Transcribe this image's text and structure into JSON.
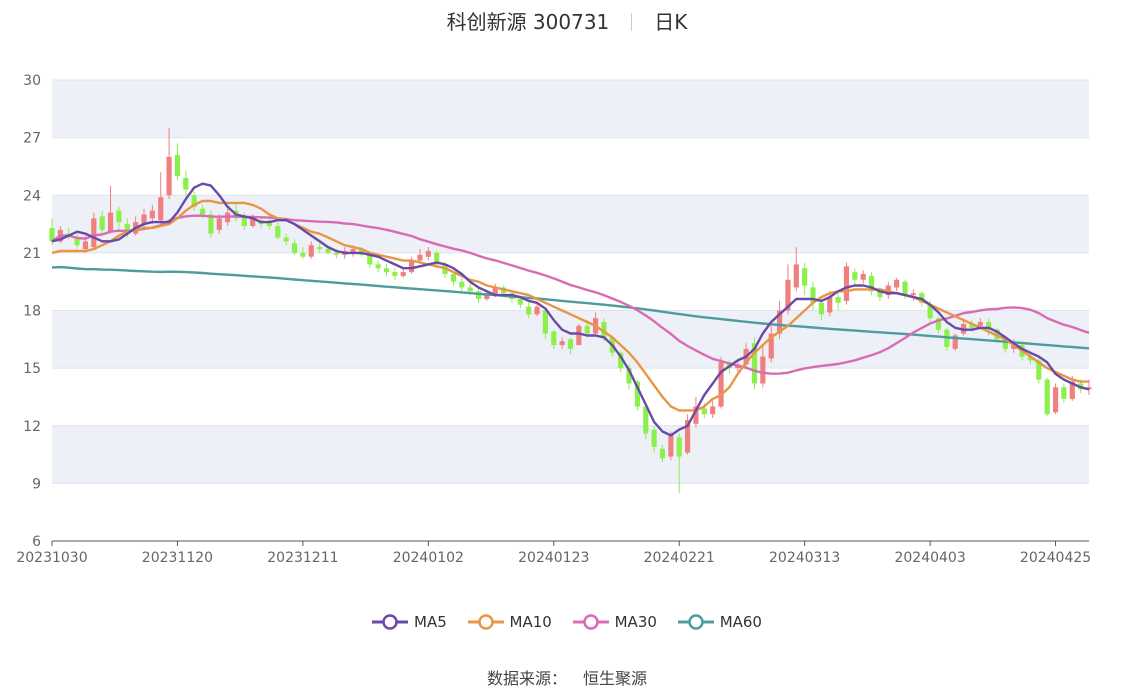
{
  "header": {
    "stock_name": "科创新源 300731",
    "period": "日K"
  },
  "source": {
    "label": "数据来源：",
    "value": "恒生聚源"
  },
  "colors": {
    "up": "#f08080",
    "down": "#8cf04c",
    "ma5": "#6a4aa8",
    "ma10": "#e89546",
    "ma30": "#d86cb4",
    "ma60": "#4e9c9c",
    "band": "#eef0f8"
  },
  "chart_data": {
    "type": "candlestick",
    "ylim": [
      6,
      30
    ],
    "yticks": [
      "6",
      "9",
      "12",
      "15",
      "18",
      "21",
      "24",
      "27",
      "30"
    ],
    "xticks": [
      "20231030",
      "20231120",
      "20231211",
      "20240102",
      "20240123",
      "20240221",
      "20240313",
      "20240403",
      "20240425"
    ],
    "xtick_index": [
      0,
      15,
      30,
      45,
      60,
      75,
      90,
      105,
      120
    ],
    "legend": [
      "MA5",
      "MA10",
      "MA30",
      "MA60"
    ],
    "candles": [
      [
        22.3,
        21.6,
        22.8,
        21.4
      ],
      [
        21.6,
        22.2,
        22.4,
        21.5
      ],
      [
        22.0,
        21.9,
        22.3,
        21.7
      ],
      [
        21.8,
        21.4,
        22.0,
        21.2
      ],
      [
        21.2,
        21.6,
        21.9,
        21.0
      ],
      [
        21.3,
        22.8,
        23.1,
        21.2
      ],
      [
        22.9,
        22.2,
        23.2,
        22.0
      ],
      [
        22.1,
        23.1,
        24.5,
        22.0
      ],
      [
        23.2,
        22.6,
        23.4,
        22.2
      ],
      [
        22.5,
        22.0,
        22.8,
        21.8
      ],
      [
        22.0,
        22.6,
        22.9,
        21.9
      ],
      [
        22.5,
        23.0,
        23.3,
        22.3
      ],
      [
        22.8,
        23.2,
        23.5,
        22.5
      ],
      [
        22.7,
        23.9,
        25.2,
        22.5
      ],
      [
        24.0,
        26.0,
        27.5,
        23.8
      ],
      [
        26.1,
        25.0,
        26.7,
        24.8
      ],
      [
        24.9,
        24.3,
        25.3,
        24.0
      ],
      [
        24.0,
        23.4,
        24.2,
        23.2
      ],
      [
        23.3,
        23.0,
        23.5,
        22.8
      ],
      [
        23.0,
        22.0,
        23.2,
        21.8
      ],
      [
        22.2,
        22.8,
        23.0,
        22.0
      ],
      [
        22.6,
        23.1,
        23.3,
        22.4
      ],
      [
        23.2,
        22.8,
        23.6,
        22.6
      ],
      [
        22.9,
        22.4,
        23.1,
        22.2
      ],
      [
        22.4,
        22.8,
        23.0,
        22.3
      ],
      [
        22.7,
        22.5,
        22.9,
        22.3
      ],
      [
        22.6,
        22.4,
        22.8,
        22.2
      ],
      [
        22.4,
        21.8,
        22.6,
        21.7
      ],
      [
        21.8,
        21.6,
        22.0,
        21.4
      ],
      [
        21.5,
        21.0,
        21.7,
        20.9
      ],
      [
        21.0,
        20.8,
        21.3,
        20.7
      ],
      [
        20.8,
        21.4,
        21.6,
        20.7
      ],
      [
        21.3,
        21.2,
        21.5,
        21.0
      ],
      [
        21.2,
        21.0,
        21.4,
        20.9
      ],
      [
        21.0,
        20.9,
        21.2,
        20.7
      ],
      [
        20.9,
        21.1,
        21.3,
        20.7
      ],
      [
        21.0,
        21.2,
        21.4,
        20.8
      ],
      [
        21.2,
        20.9,
        21.3,
        20.8
      ],
      [
        20.9,
        20.4,
        21.0,
        20.2
      ],
      [
        20.4,
        20.2,
        20.6,
        20.0
      ],
      [
        20.2,
        20.0,
        20.4,
        19.8
      ],
      [
        20.0,
        19.8,
        20.2,
        19.6
      ],
      [
        19.8,
        20.0,
        20.2,
        19.7
      ],
      [
        20.0,
        20.6,
        20.8,
        19.9
      ],
      [
        20.6,
        20.9,
        21.2,
        20.5
      ],
      [
        20.8,
        21.1,
        21.3,
        20.6
      ],
      [
        21.0,
        20.4,
        21.1,
        20.2
      ],
      [
        20.4,
        19.9,
        20.5,
        19.7
      ],
      [
        19.9,
        19.5,
        20.0,
        19.3
      ],
      [
        19.5,
        19.2,
        19.7,
        19.0
      ],
      [
        19.2,
        19.0,
        19.4,
        18.8
      ],
      [
        19.0,
        18.6,
        19.2,
        18.4
      ],
      [
        18.6,
        18.8,
        19.0,
        18.5
      ],
      [
        18.8,
        19.2,
        19.4,
        18.7
      ],
      [
        19.2,
        18.9,
        19.3,
        18.7
      ],
      [
        18.9,
        18.6,
        19.0,
        18.4
      ],
      [
        18.6,
        18.3,
        18.7,
        18.1
      ],
      [
        18.2,
        17.8,
        18.4,
        17.6
      ],
      [
        17.8,
        18.2,
        18.4,
        17.7
      ],
      [
        18.0,
        16.8,
        18.1,
        16.5
      ],
      [
        16.9,
        16.2,
        17.0,
        16.0
      ],
      [
        16.2,
        16.4,
        16.6,
        16.0
      ],
      [
        16.5,
        16.0,
        16.6,
        15.7
      ],
      [
        16.2,
        17.2,
        17.3,
        16.2
      ],
      [
        17.2,
        16.8,
        17.5,
        16.6
      ],
      [
        16.8,
        17.6,
        17.9,
        16.7
      ],
      [
        17.4,
        16.6,
        17.6,
        16.4
      ],
      [
        16.6,
        15.8,
        16.7,
        15.6
      ],
      [
        15.8,
        15.0,
        15.9,
        14.8
      ],
      [
        15.0,
        14.2,
        15.2,
        13.9
      ],
      [
        14.3,
        13.0,
        14.4,
        12.8
      ],
      [
        13.0,
        11.6,
        13.2,
        11.3
      ],
      [
        11.8,
        10.9,
        12.0,
        10.6
      ],
      [
        10.8,
        10.3,
        11.0,
        10.1
      ],
      [
        10.4,
        11.5,
        11.7,
        10.2
      ],
      [
        11.4,
        10.4,
        11.6,
        8.5
      ],
      [
        10.6,
        12.3,
        12.6,
        10.5
      ],
      [
        12.1,
        13.0,
        13.5,
        11.9
      ],
      [
        12.9,
        12.6,
        13.2,
        12.4
      ],
      [
        12.6,
        13.0,
        13.3,
        12.4
      ],
      [
        13.0,
        15.3,
        15.6,
        12.9
      ],
      [
        15.3,
        15.0,
        15.4,
        14.7
      ],
      [
        15.0,
        15.2,
        15.4,
        14.8
      ],
      [
        15.2,
        16.0,
        16.3,
        15.0
      ],
      [
        16.3,
        14.2,
        16.6,
        13.9
      ],
      [
        14.2,
        15.6,
        16.2,
        14.0
      ],
      [
        15.5,
        16.8,
        17.2,
        15.3
      ],
      [
        16.8,
        18.0,
        18.5,
        16.5
      ],
      [
        18.0,
        19.6,
        20.4,
        17.8
      ],
      [
        19.2,
        20.4,
        21.3,
        19.0
      ],
      [
        20.2,
        19.3,
        20.5,
        18.8
      ],
      [
        19.2,
        18.4,
        19.5,
        18.0
      ],
      [
        18.4,
        17.8,
        18.6,
        17.5
      ],
      [
        17.9,
        18.7,
        19.0,
        17.7
      ],
      [
        18.7,
        18.4,
        18.9,
        18.0
      ],
      [
        18.5,
        20.3,
        20.5,
        18.3
      ],
      [
        20.0,
        19.6,
        20.2,
        19.3
      ],
      [
        19.6,
        19.9,
        20.1,
        19.4
      ],
      [
        19.8,
        19.0,
        20.0,
        18.8
      ],
      [
        19.0,
        18.7,
        19.2,
        18.5
      ],
      [
        18.8,
        19.3,
        19.5,
        18.6
      ],
      [
        19.2,
        19.6,
        19.7,
        19.0
      ],
      [
        19.5,
        18.8,
        19.6,
        18.6
      ],
      [
        18.8,
        18.9,
        19.1,
        18.5
      ],
      [
        18.9,
        18.4,
        19.0,
        18.2
      ],
      [
        18.3,
        17.6,
        18.5,
        17.4
      ],
      [
        17.6,
        17.0,
        17.7,
        16.8
      ],
      [
        17.0,
        16.1,
        17.1,
        15.9
      ],
      [
        16.0,
        16.7,
        16.8,
        15.9
      ],
      [
        16.8,
        17.3,
        17.5,
        16.7
      ],
      [
        17.3,
        17.1,
        17.5,
        16.9
      ],
      [
        17.2,
        17.4,
        17.6,
        17.0
      ],
      [
        17.4,
        17.0,
        17.6,
        16.7
      ],
      [
        17.0,
        16.5,
        17.1,
        16.3
      ],
      [
        16.5,
        16.0,
        16.6,
        15.8
      ],
      [
        16.0,
        16.3,
        16.5,
        15.8
      ],
      [
        16.2,
        15.6,
        16.3,
        15.4
      ],
      [
        15.6,
        15.4,
        15.8,
        15.2
      ],
      [
        15.4,
        14.4,
        15.5,
        14.2
      ],
      [
        14.4,
        12.6,
        14.5,
        12.5
      ],
      [
        12.7,
        14.0,
        14.2,
        12.6
      ],
      [
        14.0,
        13.4,
        14.2,
        13.2
      ],
      [
        13.4,
        14.3,
        14.6,
        13.3
      ],
      [
        14.2,
        13.9,
        14.4,
        13.7
      ],
      [
        13.9,
        14.0,
        14.4,
        13.6
      ]
    ],
    "ma5": [
      21.6,
      21.7,
      21.9,
      22.1,
      22.0,
      21.8,
      21.6,
      21.6,
      21.7,
      22.0,
      22.3,
      22.5,
      22.6,
      22.6,
      22.6,
      23.1,
      23.8,
      24.4,
      24.6,
      24.5,
      24.0,
      23.4,
      23.0,
      22.9,
      22.8,
      22.6,
      22.6,
      22.7,
      22.7,
      22.5,
      22.2,
      21.9,
      21.6,
      21.3,
      21.1,
      21.0,
      21.0,
      21.0,
      20.9,
      20.8,
      20.6,
      20.4,
      20.2,
      20.2,
      20.3,
      20.4,
      20.5,
      20.4,
      20.2,
      19.9,
      19.5,
      19.2,
      19.0,
      18.8,
      18.8,
      18.8,
      18.7,
      18.5,
      18.4,
      18.1,
      17.5,
      17.0,
      16.8,
      16.8,
      16.7,
      16.7,
      16.6,
      16.2,
      15.6,
      14.9,
      14.0,
      13.1,
      12.2,
      11.7,
      11.5,
      11.8,
      12.0,
      12.8,
      13.6,
      14.2,
      14.8,
      15.1,
      15.4,
      15.6,
      16.0,
      16.8,
      17.4,
      17.8,
      18.2,
      18.6,
      18.6,
      18.6,
      18.5,
      18.7,
      19.0,
      19.2,
      19.3,
      19.3,
      19.2,
      19.0,
      18.9,
      18.9,
      18.8,
      18.7,
      18.6,
      18.3,
      17.9,
      17.4,
      17.1,
      17.0,
      17.0,
      17.1,
      17.1,
      16.9,
      16.6,
      16.3,
      16.0,
      15.8,
      15.6,
      15.3,
      14.7,
      14.4,
      14.2,
      14.0,
      13.9
    ],
    "ma10": [
      21.0,
      21.1,
      21.1,
      21.1,
      21.1,
      21.2,
      21.4,
      21.6,
      21.9,
      22.1,
      22.2,
      22.3,
      22.3,
      22.4,
      22.5,
      22.8,
      23.2,
      23.5,
      23.7,
      23.7,
      23.6,
      23.6,
      23.6,
      23.6,
      23.5,
      23.3,
      23.0,
      22.8,
      22.7,
      22.5,
      22.3,
      22.1,
      22.0,
      21.8,
      21.6,
      21.4,
      21.3,
      21.2,
      21.0,
      20.9,
      20.8,
      20.7,
      20.6,
      20.6,
      20.5,
      20.4,
      20.3,
      20.2,
      20.0,
      19.8,
      19.6,
      19.5,
      19.3,
      19.2,
      19.1,
      19.0,
      18.9,
      18.8,
      18.6,
      18.4,
      18.2,
      18.0,
      17.8,
      17.6,
      17.4,
      17.2,
      16.9,
      16.6,
      16.2,
      15.8,
      15.3,
      14.7,
      14.1,
      13.5,
      13.0,
      12.8,
      12.8,
      12.8,
      13.0,
      13.4,
      13.6,
      14.0,
      14.7,
      15.3,
      15.8,
      16.2,
      16.6,
      16.9,
      17.2,
      17.6,
      18.0,
      18.4,
      18.7,
      18.9,
      19.0,
      19.0,
      19.1,
      19.1,
      19.1,
      19.1,
      19.0,
      18.9,
      18.8,
      18.7,
      18.5,
      18.3,
      18.1,
      17.9,
      17.7,
      17.5,
      17.3,
      17.1,
      16.9,
      16.7,
      16.5,
      16.2,
      15.9,
      15.6,
      15.3,
      15.0,
      14.8,
      14.6,
      14.4,
      14.3,
      14.3
    ]
  }
}
